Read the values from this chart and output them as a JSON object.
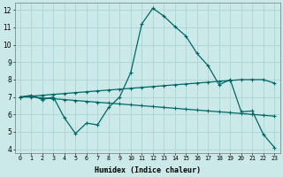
{
  "xlabel": "Humidex (Indice chaleur)",
  "bg_color": "#cce9e9",
  "grid_color": "#aad4d4",
  "line_color": "#006666",
  "xlim": [
    -0.5,
    23.5
  ],
  "ylim": [
    3.8,
    12.4
  ],
  "yticks": [
    4,
    5,
    6,
    7,
    8,
    9,
    10,
    11,
    12
  ],
  "xticks": [
    0,
    1,
    2,
    3,
    4,
    5,
    6,
    7,
    8,
    9,
    10,
    11,
    12,
    13,
    14,
    15,
    16,
    17,
    18,
    19,
    20,
    21,
    22,
    23
  ],
  "line1_x": [
    0,
    1,
    2,
    3,
    4,
    5,
    6,
    7,
    8,
    9,
    10,
    11,
    12,
    13,
    14,
    15,
    16,
    17,
    18,
    19,
    20,
    21,
    22,
    23
  ],
  "line1_y": [
    7.0,
    7.1,
    6.85,
    7.0,
    5.8,
    4.9,
    5.5,
    5.4,
    6.4,
    7.0,
    8.4,
    11.2,
    12.1,
    11.65,
    11.05,
    10.5,
    9.5,
    8.8,
    7.7,
    8.0,
    6.15,
    6.2,
    4.85,
    4.1
  ],
  "line2_x": [
    0,
    1,
    2,
    3,
    4,
    5,
    6,
    7,
    8,
    9,
    10,
    11,
    12,
    13,
    14,
    15,
    16,
    17,
    18,
    19,
    20,
    21,
    22,
    23
  ],
  "line2_y": [
    7.0,
    7.05,
    7.1,
    7.15,
    7.2,
    7.25,
    7.3,
    7.35,
    7.4,
    7.45,
    7.5,
    7.55,
    7.6,
    7.65,
    7.7,
    7.75,
    7.8,
    7.85,
    7.9,
    7.95,
    8.0,
    8.0,
    8.0,
    7.8
  ],
  "line3_x": [
    0,
    1,
    2,
    3,
    4,
    5,
    6,
    7,
    8,
    9,
    10,
    11,
    12,
    13,
    14,
    15,
    16,
    17,
    18,
    19,
    20,
    21,
    22,
    23
  ],
  "line3_y": [
    7.0,
    7.0,
    6.95,
    6.9,
    6.85,
    6.8,
    6.75,
    6.7,
    6.65,
    6.6,
    6.55,
    6.5,
    6.45,
    6.4,
    6.35,
    6.3,
    6.25,
    6.2,
    6.15,
    6.1,
    6.05,
    6.0,
    5.95,
    5.9
  ],
  "marker": "+",
  "marker_size": 3.5,
  "linewidth": 0.9
}
